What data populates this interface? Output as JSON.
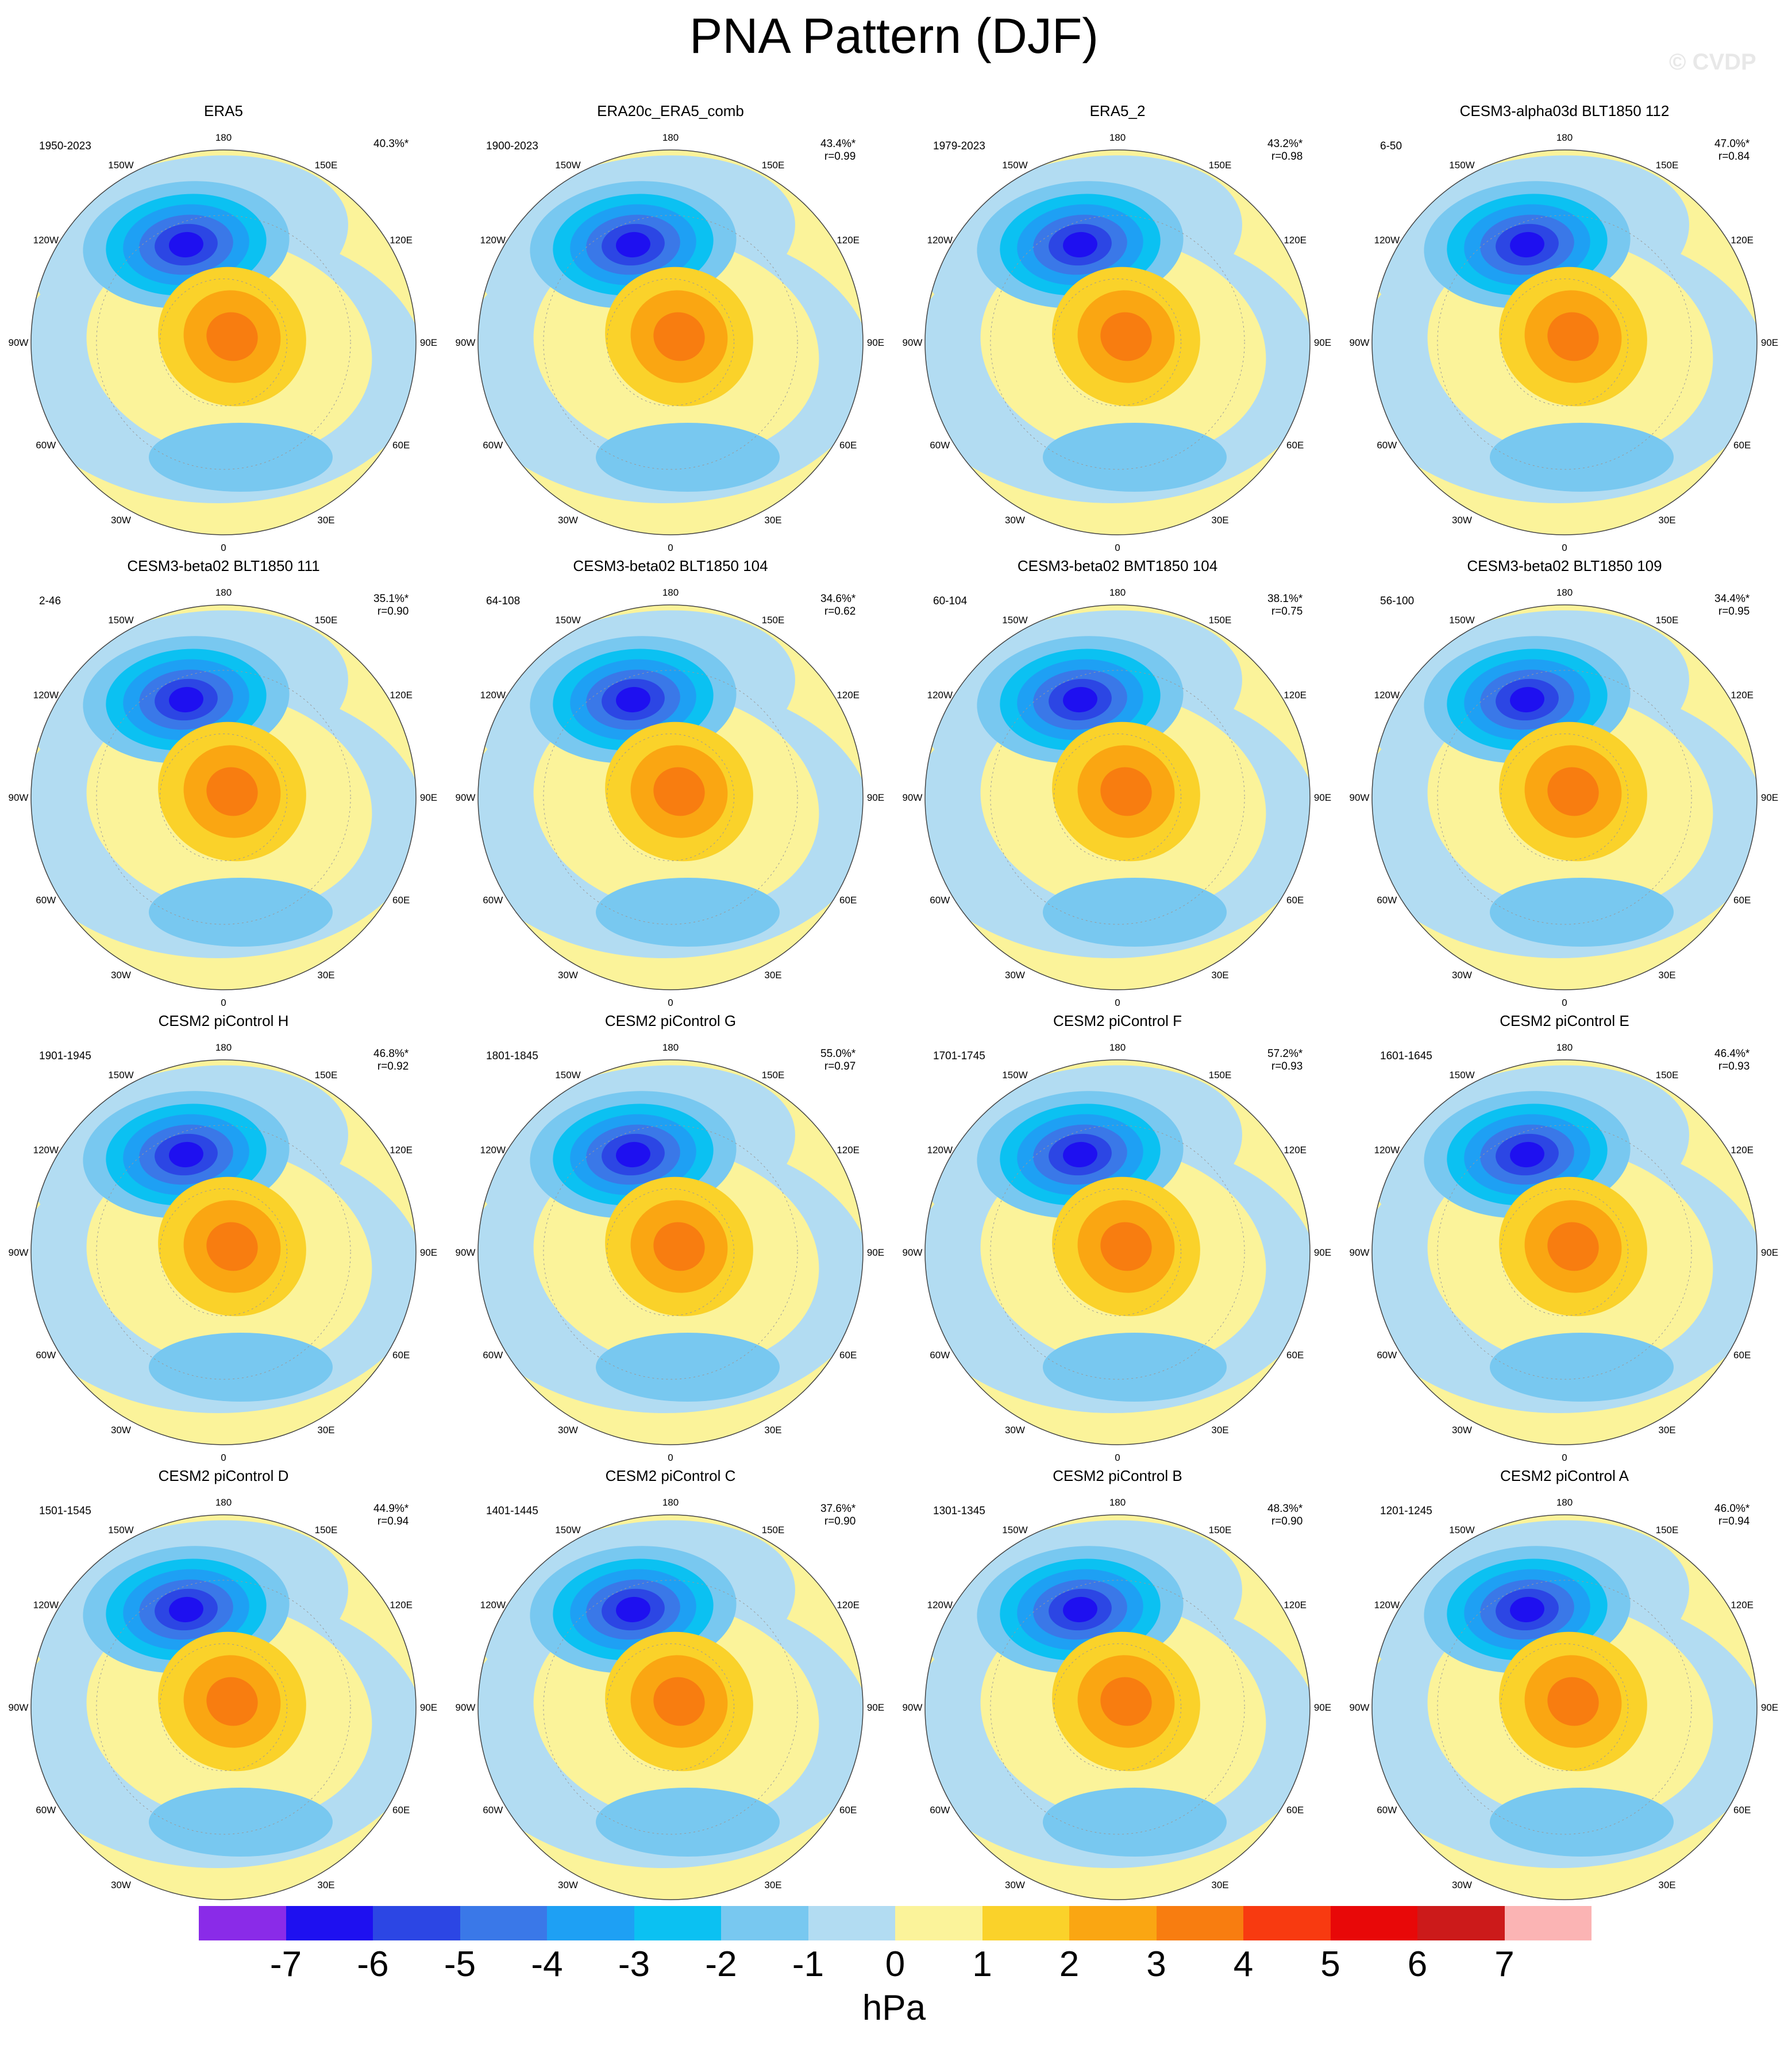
{
  "title": "PNA Pattern (DJF)",
  "watermark": "© CVDP",
  "lon_labels": [
    "180",
    "150E",
    "120E",
    "90E",
    "60E",
    "30E",
    "0",
    "30W",
    "60W",
    "90W",
    "120W",
    "150W"
  ],
  "panels": [
    {
      "title": "ERA5",
      "period": "1950-2023",
      "stats": "40.3%*"
    },
    {
      "title": "ERA20c_ERA5_comb",
      "period": "1900-2023",
      "stats": "43.4%*\nr=0.99"
    },
    {
      "title": "ERA5_2",
      "period": "1979-2023",
      "stats": "43.2%*\nr=0.98"
    },
    {
      "title": "CESM3-alpha03d BLT1850 112",
      "period": "6-50",
      "stats": "47.0%*\nr=0.84"
    },
    {
      "title": "CESM3-beta02 BLT1850 111",
      "period": "2-46",
      "stats": "35.1%*\nr=0.90"
    },
    {
      "title": "CESM3-beta02 BLT1850 104",
      "period": "64-108",
      "stats": "34.6%*\nr=0.62"
    },
    {
      "title": "CESM3-beta02 BMT1850 104",
      "period": "60-104",
      "stats": "38.1%*\nr=0.75"
    },
    {
      "title": "CESM3-beta02 BLT1850 109",
      "period": "56-100",
      "stats": "34.4%*\nr=0.95"
    },
    {
      "title": "CESM2 piControl H",
      "period": "1901-1945",
      "stats": "46.8%*\nr=0.92"
    },
    {
      "title": "CESM2 piControl G",
      "period": "1801-1845",
      "stats": "55.0%*\nr=0.97"
    },
    {
      "title": "CESM2 piControl F",
      "period": "1701-1745",
      "stats": "57.2%*\nr=0.93"
    },
    {
      "title": "CESM2 piControl E",
      "period": "1601-1645",
      "stats": "46.4%*\nr=0.93"
    },
    {
      "title": "CESM2 piControl D",
      "period": "1501-1545",
      "stats": "44.9%*\nr=0.94"
    },
    {
      "title": "CESM2 piControl C",
      "period": "1401-1445",
      "stats": "37.6%*\nr=0.90"
    },
    {
      "title": "CESM2 piControl B",
      "period": "1301-1345",
      "stats": "48.3%*\nr=0.90"
    },
    {
      "title": "CESM2 piControl A",
      "period": "1201-1245",
      "stats": "46.0%*\nr=0.94"
    }
  ],
  "colorbar": {
    "colors": [
      "#8a2be8",
      "#1e10f0",
      "#2c46e4",
      "#3a78e8",
      "#1ea0f4",
      "#0bc1f2",
      "#78c8f0",
      "#b2dcf2",
      "#fbf39a",
      "#fad22a",
      "#faa612",
      "#f87d10",
      "#f83a10",
      "#e80808",
      "#cc1a1a",
      "#fbb4b4"
    ],
    "labels": [
      "-7",
      "-6",
      "-5",
      "-4",
      "-3",
      "-2",
      "-1",
      "0",
      "1",
      "2",
      "3",
      "4",
      "5",
      "6",
      "7"
    ],
    "unit": "hPa"
  },
  "map_colors": {
    "background": "#fbf39a",
    "neg_light": "#b2dcf2",
    "neg_mid": "#78c8f0",
    "neg_2": "#0bc1f2",
    "neg_3": "#1ea0f4",
    "neg_4": "#3a78e8",
    "neg_5": "#2c46e4",
    "neg_6": "#1e10f0",
    "pos_1": "#fad22a",
    "pos_2": "#faa612",
    "pos_3": "#f87d10",
    "pos_4": "#f83a10"
  }
}
